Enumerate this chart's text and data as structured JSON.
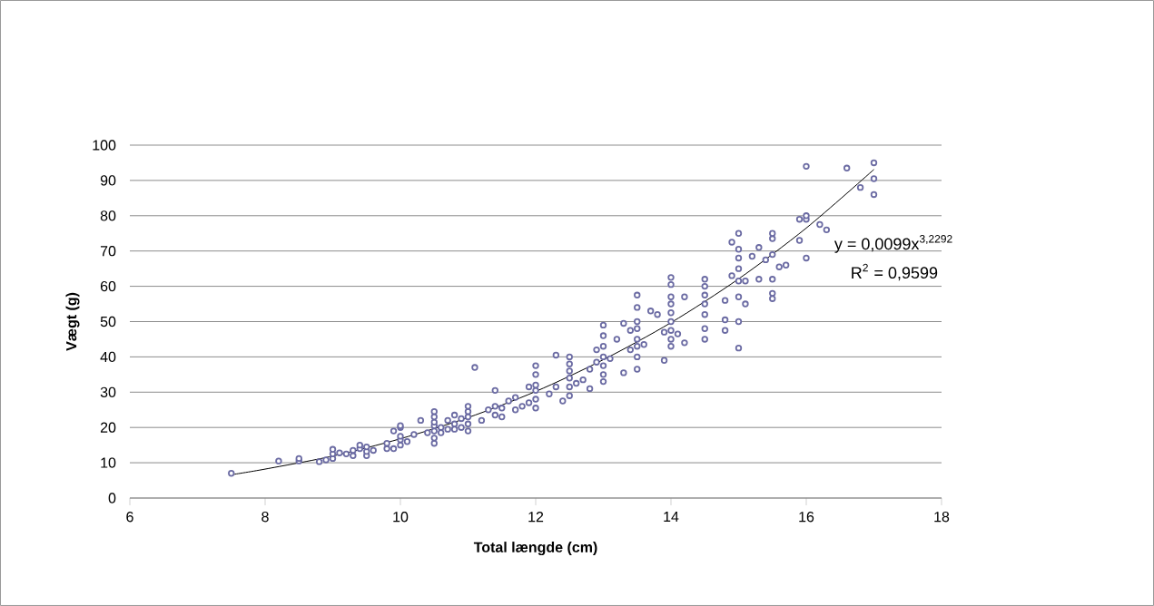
{
  "chart_data": {
    "type": "scatter",
    "xlabel": "Total længde (cm)",
    "ylabel": "Vægt (g)",
    "xlim": [
      6,
      18
    ],
    "ylim": [
      0,
      100
    ],
    "xticks": [
      6,
      8,
      10,
      12,
      14,
      16,
      18
    ],
    "yticks": [
      0,
      10,
      20,
      30,
      40,
      50,
      60,
      70,
      80,
      90,
      100
    ],
    "grid": "y",
    "annotations": [
      "y = 0,0099x$^{3,2292}$",
      "R$^{2}$ = 0,9599"
    ],
    "series": [
      {
        "color": "#6b6ba3",
        "marker": "circle",
        "x": [
          7.5,
          8.2,
          8.5,
          8.5,
          8.8,
          8.9,
          9,
          9,
          9,
          9.1,
          9.2,
          9.3,
          9.3,
          9.4,
          9.4,
          9.5,
          9.5,
          9.5,
          9.6,
          9.8,
          9.8,
          9.9,
          9.9,
          10,
          10,
          10,
          10,
          10,
          10.1,
          10.2,
          10.3,
          10.4,
          10.5,
          10.5,
          10.5,
          10.5,
          10.5,
          10.5,
          10.5,
          10.6,
          10.6,
          10.7,
          10.7,
          10.8,
          10.8,
          10.8,
          10.9,
          10.9,
          11,
          11,
          11,
          11,
          11,
          11.1,
          11.2,
          11.3,
          11.4,
          11.4,
          11.4,
          11.5,
          11.5,
          11.6,
          11.7,
          11.7,
          11.8,
          11.9,
          11.9,
          12,
          12,
          12,
          12,
          12,
          12,
          12.2,
          12.3,
          12.3,
          12.4,
          12.5,
          12.5,
          12.5,
          12.5,
          12.5,
          12.5,
          12.6,
          12.7,
          12.8,
          12.8,
          12.9,
          12.9,
          13,
          13,
          13,
          13,
          13,
          13,
          13,
          13.1,
          13.2,
          13.3,
          13.3,
          13.4,
          13.4,
          13.5,
          13.5,
          13.5,
          13.5,
          13.5,
          13.5,
          13.5,
          13.5,
          13.6,
          13.7,
          13.8,
          13.9,
          13.9,
          14,
          14,
          14,
          14,
          14,
          14,
          14,
          14,
          14,
          14.1,
          14.2,
          14.2,
          14.5,
          14.5,
          14.5,
          14.5,
          14.5,
          14.5,
          14.5,
          14.8,
          14.8,
          14.8,
          14.9,
          14.9,
          15,
          15,
          15,
          15,
          15,
          15,
          15,
          15,
          15.1,
          15.1,
          15.2,
          15.3,
          15.3,
          15.4,
          15.5,
          15.5,
          15.5,
          15.5,
          15.5,
          15.5,
          15.6,
          15.7,
          15.9,
          15.9,
          16,
          16,
          16,
          16,
          16.2,
          16.3,
          16.6,
          16.8,
          17,
          17,
          17
        ],
        "values": [
          7,
          10.5,
          10.5,
          11.2,
          10.3,
          10.8,
          11.2,
          12.5,
          13.8,
          12.8,
          12.5,
          12,
          13.5,
          14,
          15,
          12,
          13.2,
          14.5,
          13.5,
          14,
          15.5,
          19,
          14,
          15,
          16.5,
          17.5,
          20,
          20.5,
          16,
          18,
          22,
          18.5,
          15.5,
          17,
          19,
          20.5,
          21.5,
          23,
          24.5,
          18.5,
          20,
          19.5,
          22,
          19.5,
          21,
          23.5,
          20,
          22.5,
          19,
          21,
          23,
          24.5,
          26,
          37,
          22,
          25,
          23.5,
          26,
          30.5,
          23,
          25.5,
          27.5,
          25,
          28.5,
          26,
          27,
          31.5,
          25.5,
          28,
          30.5,
          32,
          35,
          37.5,
          29.5,
          31.5,
          40.5,
          27.5,
          29,
          31.5,
          34,
          36,
          38,
          40,
          32.5,
          33.5,
          31,
          36.5,
          38.5,
          42,
          33,
          35,
          37.5,
          40,
          43,
          46,
          49,
          39.5,
          45,
          35.5,
          49.5,
          42,
          47.5,
          36.5,
          40,
          43,
          45,
          48,
          50,
          54,
          57.5,
          43.5,
          53,
          52,
          39,
          47,
          43,
          45,
          47.5,
          50,
          52.5,
          55,
          57,
          60.5,
          62.5,
          46.5,
          44,
          57,
          45,
          48,
          52,
          55,
          57.5,
          60,
          62,
          47.5,
          50.5,
          56,
          63,
          72.5,
          42.5,
          50,
          57,
          61.5,
          65,
          68,
          70.5,
          75,
          55,
          61.5,
          68.5,
          62,
          71,
          67.5,
          56.5,
          58,
          62,
          69,
          73.5,
          75,
          65.5,
          66,
          73,
          79,
          68,
          79,
          80,
          94,
          77.5,
          76,
          93.5,
          88,
          86,
          90.5,
          95
        ]
      },
      {
        "type": "line",
        "color": "#000000",
        "marker": "none",
        "line_style": "solid",
        "x": [
          7.5,
          8,
          9,
          10,
          11,
          12,
          13,
          14,
          15,
          16,
          17
        ],
        "values": [
          6.6,
          8.2,
          11.9,
          16.8,
          22.8,
          30.2,
          39.2,
          49.7,
          62.1,
          76.5,
          93.1
        ]
      }
    ]
  }
}
